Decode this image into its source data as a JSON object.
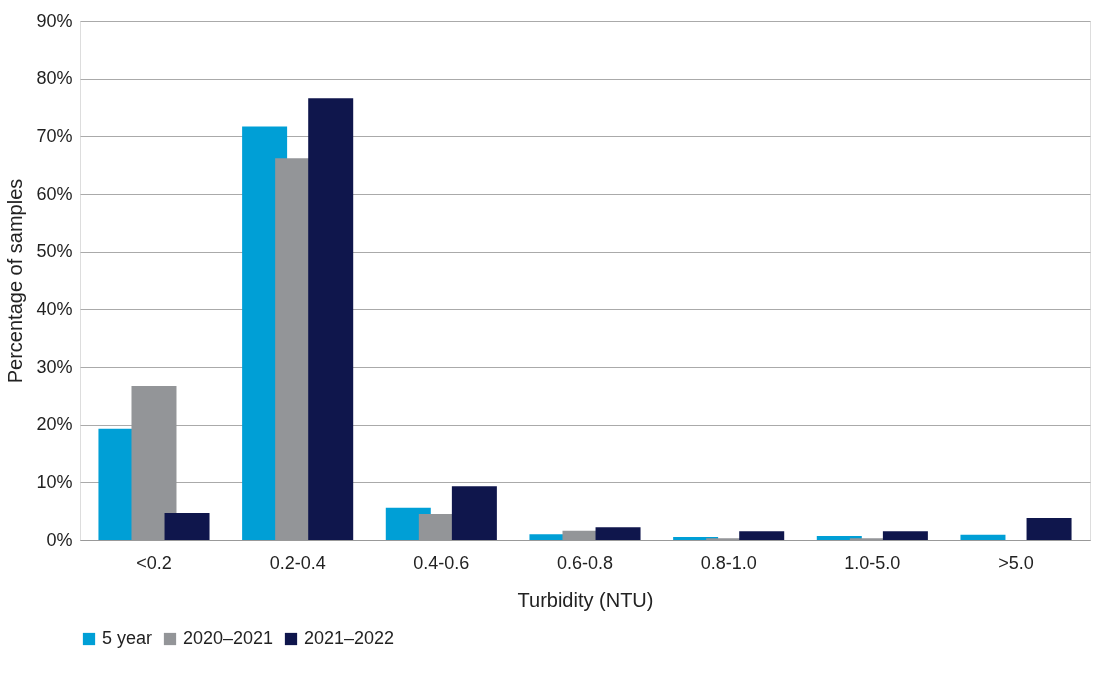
{
  "chart_data": {
    "type": "bar",
    "xlabel": "Turbidity (NTU)",
    "ylabel": "Percentage of samples",
    "categories": [
      "<0.2",
      "0.2-0.4",
      "0.4-0.6",
      "0.6-0.8",
      "0.8-1.0",
      "1.0-5.0",
      ">5.0"
    ],
    "series": [
      {
        "name": "5 year",
        "color": "#009fd6",
        "values": [
          19.3,
          71.7,
          5.6,
          1.0,
          0.5,
          0.7,
          0.9
        ]
      },
      {
        "name": "2020–2021",
        "color": "#939598",
        "values": [
          26.7,
          66.2,
          4.5,
          1.6,
          0.3,
          0.3,
          0
        ]
      },
      {
        "name": "2021–2022",
        "color": "#0f164c",
        "values": [
          4.7,
          76.6,
          9.3,
          2.2,
          1.5,
          1.5,
          3.8
        ]
      }
    ],
    "ylim": [
      0,
      90
    ],
    "yticks": [
      {
        "value": 0,
        "label": "0%"
      },
      {
        "value": 10,
        "label": "10%"
      },
      {
        "value": 20,
        "label": "20%"
      },
      {
        "value": 30,
        "label": "30%"
      },
      {
        "value": 40,
        "label": "40%"
      },
      {
        "value": 50,
        "label": "50%"
      },
      {
        "value": 60,
        "label": "60%"
      },
      {
        "value": 70,
        "label": "70%"
      },
      {
        "value": 80,
        "label": "80%"
      },
      {
        "value": 90,
        "label": "90%"
      }
    ],
    "grid": "y",
    "legend": "bottom"
  }
}
